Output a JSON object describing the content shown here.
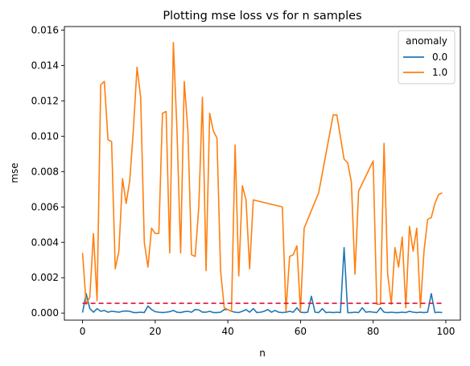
{
  "chart_data": {
    "type": "line",
    "title": "Plotting mse loss vs for n samples",
    "xlabel": "n",
    "ylabel": "mse",
    "xlim": [
      -5,
      104
    ],
    "ylim": [
      -0.0004,
      0.0162
    ],
    "xticks": [
      "0",
      "20",
      "40",
      "60",
      "80",
      "100"
    ],
    "yticks": [
      "0.000",
      "0.002",
      "0.004",
      "0.006",
      "0.008",
      "0.010",
      "0.012",
      "0.014",
      "0.016"
    ],
    "xtick_values": [
      0,
      20,
      40,
      60,
      80,
      100
    ],
    "ytick_values": [
      0,
      0.002,
      0.004,
      0.006,
      0.008,
      0.01,
      0.012,
      0.014,
      0.016
    ],
    "grid": false,
    "legend": {
      "title": "anomaly",
      "placement": "top-right"
    },
    "series": [
      {
        "name": "0.0",
        "color": "#1f77b4",
        "points": [
          [
            0,
            3e-05
          ],
          [
            1,
            0.0011
          ],
          [
            2,
            0.00025
          ],
          [
            3,
            5e-05
          ],
          [
            4,
            0.00025
          ],
          [
            5,
            0.0001
          ],
          [
            6,
            0.00015
          ],
          [
            7,
            5e-05
          ],
          [
            8,
            0.0001
          ],
          [
            9,
            8e-05
          ],
          [
            10,
            5e-05
          ],
          [
            11,
            0.0001
          ],
          [
            12,
            0.00012
          ],
          [
            13,
            0.0001
          ],
          [
            14,
            3e-05
          ],
          [
            15,
            3e-05
          ],
          [
            16,
            5e-05
          ],
          [
            17,
            3e-05
          ],
          [
            18,
            0.0004
          ],
          [
            19,
            0.0002
          ],
          [
            20,
            8e-05
          ],
          [
            21,
            5e-05
          ],
          [
            22,
            3e-05
          ],
          [
            23,
            5e-05
          ],
          [
            24,
            8e-05
          ],
          [
            25,
            0.00015
          ],
          [
            26,
            5e-05
          ],
          [
            27,
            3e-05
          ],
          [
            28,
            8e-05
          ],
          [
            29,
            0.0001
          ],
          [
            30,
            5e-05
          ],
          [
            31,
            0.0002
          ],
          [
            32,
            0.00018
          ],
          [
            33,
            5e-05
          ],
          [
            34,
            5e-05
          ],
          [
            35,
            0.0001
          ],
          [
            36,
            3e-05
          ],
          [
            37,
            3e-05
          ],
          [
            38,
            5e-05
          ],
          [
            39,
            0.0002
          ],
          [
            40,
            0.0002
          ],
          [
            41,
            0.0001
          ],
          [
            42,
            5e-05
          ],
          [
            43,
            3e-05
          ],
          [
            44,
            0.0001
          ],
          [
            45,
            0.0002
          ],
          [
            46,
            5e-05
          ],
          [
            47,
            0.00025
          ],
          [
            48,
            3e-05
          ],
          [
            49,
            5e-05
          ],
          [
            50,
            0.0001
          ],
          [
            51,
            0.0002
          ],
          [
            52,
            5e-05
          ],
          [
            53,
            0.00015
          ],
          [
            54,
            5e-05
          ],
          [
            55,
            3e-05
          ],
          [
            56,
            5e-05
          ],
          [
            57,
            0.0001
          ],
          [
            58,
            5e-05
          ],
          [
            59,
            0.0003
          ],
          [
            60,
            5e-05
          ],
          [
            61,
            3e-05
          ],
          [
            62,
            5e-05
          ],
          [
            63,
            0.00095
          ],
          [
            64,
            5e-05
          ],
          [
            65,
            3e-05
          ],
          [
            66,
            0.00025
          ],
          [
            67,
            3e-05
          ],
          [
            68,
            5e-05
          ],
          [
            69,
            3e-05
          ],
          [
            70,
            5e-05
          ],
          [
            71,
            3e-05
          ],
          [
            72,
            0.0037
          ],
          [
            73,
            3e-05
          ],
          [
            74,
            3e-05
          ],
          [
            75,
            5e-05
          ],
          [
            76,
            3e-05
          ],
          [
            77,
            0.0003
          ],
          [
            78,
            5e-05
          ],
          [
            79,
            8e-05
          ],
          [
            80,
            5e-05
          ],
          [
            81,
            3e-05
          ],
          [
            82,
            0.0003
          ],
          [
            83,
            5e-05
          ],
          [
            84,
            3e-05
          ],
          [
            85,
            5e-05
          ],
          [
            86,
            3e-05
          ],
          [
            87,
            3e-05
          ],
          [
            88,
            5e-05
          ],
          [
            89,
            3e-05
          ],
          [
            90,
            0.0001
          ],
          [
            91,
            5e-05
          ],
          [
            92,
            3e-05
          ],
          [
            93,
            5e-05
          ],
          [
            94,
            3e-05
          ],
          [
            95,
            5e-05
          ],
          [
            96,
            0.0011
          ],
          [
            97,
            3e-05
          ],
          [
            98,
            5e-05
          ],
          [
            99,
            3e-05
          ]
        ]
      },
      {
        "name": "1.0",
        "color": "#ff7f0e",
        "points": [
          [
            0,
            0.0034
          ],
          [
            1,
            0.0005
          ],
          [
            2,
            0.0009
          ],
          [
            3,
            0.0045
          ],
          [
            4,
            0.0007
          ],
          [
            5,
            0.0129
          ],
          [
            6,
            0.0131
          ],
          [
            7,
            0.0098
          ],
          [
            8,
            0.0097
          ],
          [
            9,
            0.0025
          ],
          [
            10,
            0.0035
          ],
          [
            11,
            0.0076
          ],
          [
            12,
            0.0062
          ],
          [
            13,
            0.0075
          ],
          [
            14,
            0.0104
          ],
          [
            15,
            0.0139
          ],
          [
            16,
            0.0122
          ],
          [
            17,
            0.004
          ],
          [
            18,
            0.0026
          ],
          [
            19,
            0.0048
          ],
          [
            20,
            0.0045
          ],
          [
            21,
            0.0045
          ],
          [
            22,
            0.0113
          ],
          [
            23,
            0.0114
          ],
          [
            24,
            0.0034
          ],
          [
            25,
            0.0153
          ],
          [
            26,
            0.0103
          ],
          [
            27,
            0.0034
          ],
          [
            28,
            0.0131
          ],
          [
            29,
            0.0103
          ],
          [
            30,
            0.0033
          ],
          [
            31,
            0.0032
          ],
          [
            32,
            0.006
          ],
          [
            33,
            0.0122
          ],
          [
            34,
            0.0024
          ],
          [
            35,
            0.0113
          ],
          [
            36,
            0.0103
          ],
          [
            37,
            0.0099
          ],
          [
            38,
            0.0024
          ],
          [
            39,
            0.0003
          ],
          [
            40,
            0.0002
          ],
          [
            41,
            0.0001
          ],
          [
            42,
            0.0095
          ],
          [
            43,
            0.0021
          ],
          [
            44,
            0.0072
          ],
          [
            45,
            0.0064
          ],
          [
            46,
            0.0025
          ],
          [
            47,
            0.0064
          ],
          [
            55,
            0.006
          ],
          [
            56,
            0.0001
          ],
          [
            57,
            0.0032
          ],
          [
            58,
            0.0033
          ],
          [
            59,
            0.0038
          ],
          [
            60,
            0.0001
          ],
          [
            61,
            0.0048
          ],
          [
            65,
            0.0068
          ],
          [
            69,
            0.0112
          ],
          [
            70,
            0.0112
          ],
          [
            72,
            0.0087
          ],
          [
            73,
            0.0085
          ],
          [
            74,
            0.0074
          ],
          [
            75,
            0.0022
          ],
          [
            76,
            0.0069
          ],
          [
            80,
            0.0086
          ],
          [
            81,
            0.0005
          ],
          [
            82,
            0.0005
          ],
          [
            83,
            0.0096
          ],
          [
            84,
            0.0022
          ],
          [
            85,
            0.0005
          ],
          [
            86,
            0.0037
          ],
          [
            87,
            0.0026
          ],
          [
            88,
            0.0043
          ],
          [
            89,
            0.0003
          ],
          [
            90,
            0.0049
          ],
          [
            91,
            0.0035
          ],
          [
            92,
            0.0048
          ],
          [
            93,
            0.0003
          ],
          [
            94,
            0.0035
          ],
          [
            95,
            0.0053
          ],
          [
            96,
            0.0054
          ],
          [
            97,
            0.0062
          ],
          [
            98,
            0.0067
          ],
          [
            99,
            0.0068
          ]
        ]
      }
    ],
    "reference_line": {
      "y": 0.00055,
      "x_range": [
        0,
        99
      ],
      "style": "dashed",
      "color": "#dc143c"
    }
  }
}
